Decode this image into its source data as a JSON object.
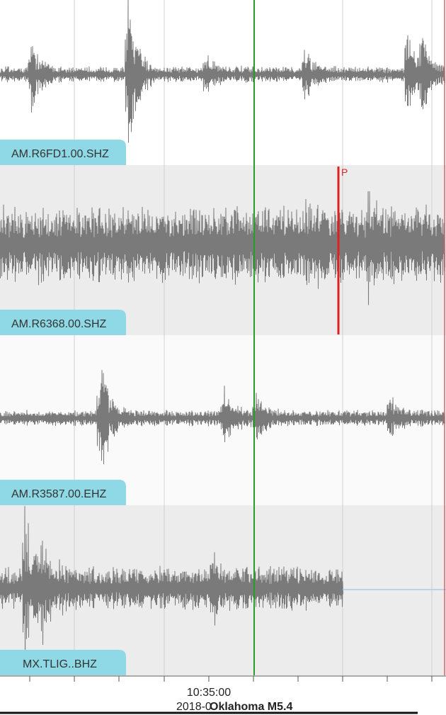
{
  "tracks": [
    {
      "label": "AM.R6FD1.00.SHZ"
    },
    {
      "label": "AM.R6368.00.SHZ"
    },
    {
      "label": "AM.R3587.00.EHZ"
    },
    {
      "label": "MX.TLIG..BHZ"
    }
  ],
  "pick": "P",
  "time_label": "10:35:00",
  "date_label": "2018-0",
  "event": "Oklahoma M5.4"
}
